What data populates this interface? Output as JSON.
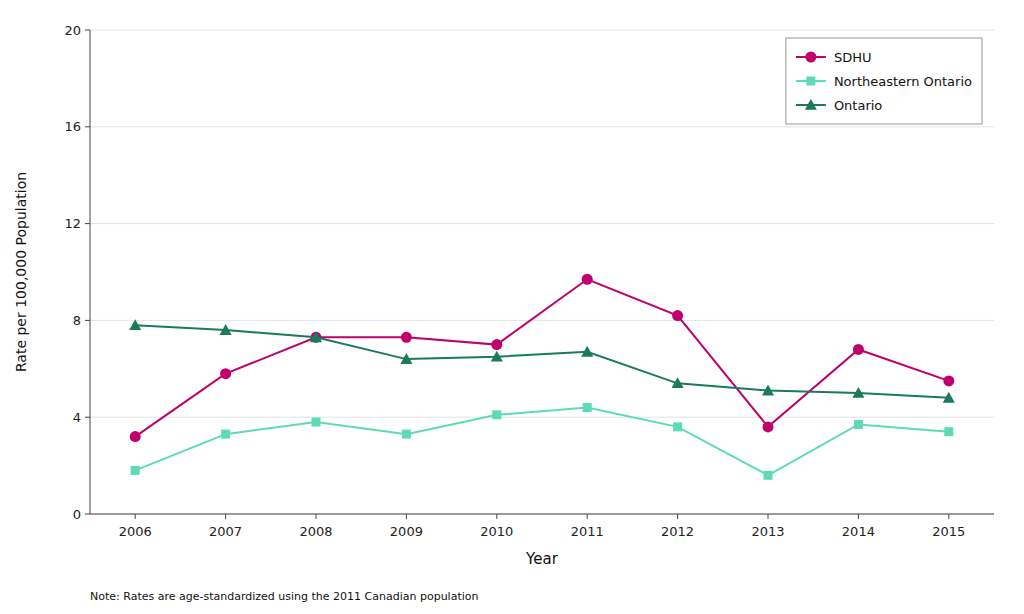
{
  "chart_data": {
    "type": "line",
    "x": [
      2006,
      2007,
      2008,
      2009,
      2010,
      2011,
      2012,
      2013,
      2014,
      2015
    ],
    "xlim": [
      2005.5,
      2015.5
    ],
    "xticks": [
      2006,
      2007,
      2008,
      2009,
      2010,
      2011,
      2012,
      2013,
      2014,
      2015
    ],
    "ylim": [
      0,
      20
    ],
    "yticks": [
      0,
      4,
      8,
      12,
      16,
      20
    ],
    "x_label": "Year",
    "y_label": "Rate per 100,000 Population",
    "grid": true,
    "legend": "upper right",
    "annotations": [
      "Note: Rates are age-standardized using the 2011 Canadian population"
    ],
    "series": [
      {
        "name": "SDHU",
        "color": "#c0006c",
        "marker": "circle",
        "values": [
          3.2,
          5.8,
          7.3,
          7.3,
          7.0,
          9.7,
          8.2,
          3.6,
          6.8,
          5.5
        ]
      },
      {
        "name": "Northeastern Ontario",
        "color": "#5ddbb8",
        "marker": "square",
        "values": [
          1.8,
          3.3,
          3.8,
          3.3,
          4.1,
          4.4,
          3.6,
          1.6,
          3.7,
          3.4
        ]
      },
      {
        "name": "Ontario",
        "color": "#1a7a5e",
        "marker": "triangle",
        "values": [
          7.8,
          7.6,
          7.3,
          6.4,
          6.5,
          6.7,
          5.4,
          5.1,
          5.0,
          4.8
        ]
      }
    ]
  }
}
